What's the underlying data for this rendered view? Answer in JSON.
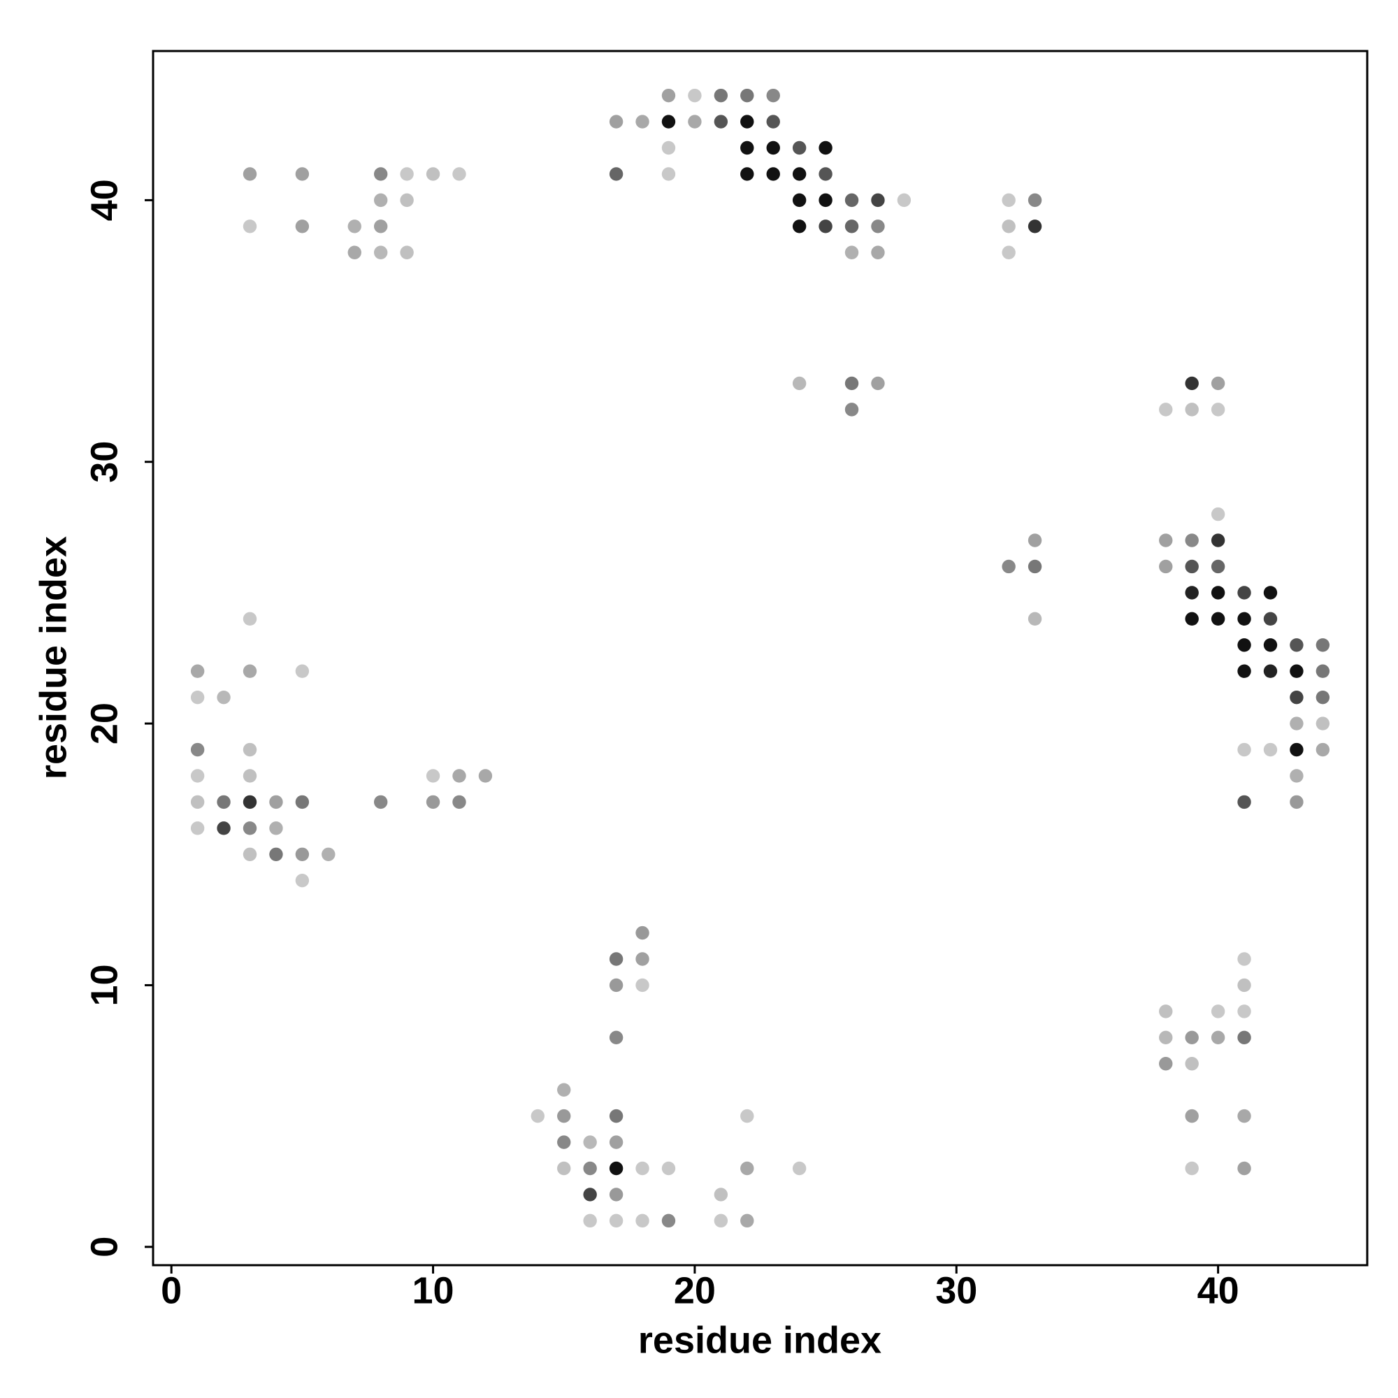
{
  "chart_data": {
    "type": "scatter",
    "xlabel": "residue index",
    "ylabel": "residue index",
    "xlim": [
      -0.7,
      45.7
    ],
    "ylim": [
      -0.7,
      45.7
    ],
    "xticks": [
      0,
      10,
      20,
      30,
      40
    ],
    "yticks": [
      0,
      10,
      20,
      30,
      40
    ],
    "x": [
      19,
      20,
      21,
      22,
      23,
      17,
      18,
      19,
      20,
      21,
      22,
      23,
      19,
      22,
      23,
      24,
      25,
      3,
      5,
      8,
      9,
      10,
      11,
      17,
      19,
      22,
      23,
      24,
      25,
      8,
      9,
      24,
      25,
      26,
      27,
      28,
      32,
      33,
      3,
      5,
      7,
      8,
      24,
      25,
      26,
      27,
      32,
      33,
      7,
      8,
      9,
      26,
      27,
      32,
      24,
      26,
      27,
      39,
      40,
      26,
      38,
      39,
      40,
      40,
      33,
      38,
      39,
      40,
      32,
      33,
      38,
      39,
      40,
      39,
      40,
      41,
      42,
      3,
      33,
      39,
      40,
      41,
      42,
      41,
      42,
      43,
      44,
      1,
      3,
      5,
      41,
      42,
      43,
      44,
      1,
      2,
      43,
      44,
      43,
      44,
      1,
      3,
      41,
      42,
      43,
      44,
      1,
      3,
      10,
      11,
      12,
      43,
      1,
      2,
      3,
      4,
      5,
      8,
      10,
      11,
      41,
      43,
      1,
      2,
      3,
      4,
      3,
      4,
      5,
      6,
      5,
      18,
      17,
      18,
      41,
      17,
      18,
      41,
      38,
      40,
      41,
      17,
      38,
      39,
      40,
      41,
      38,
      39,
      15,
      14,
      15,
      17,
      22,
      39,
      41,
      15,
      16,
      17,
      15,
      16,
      17,
      18,
      19,
      22,
      24,
      39,
      41,
      16,
      17,
      21,
      16,
      17,
      18,
      19,
      21,
      22
    ],
    "values": [
      44,
      44,
      44,
      44,
      44,
      43,
      43,
      43,
      43,
      43,
      43,
      43,
      42,
      42,
      42,
      42,
      42,
      41,
      41,
      41,
      41,
      41,
      41,
      41,
      41,
      41,
      41,
      41,
      41,
      40,
      40,
      40,
      40,
      40,
      40,
      40,
      40,
      40,
      39,
      39,
      39,
      39,
      39,
      39,
      39,
      39,
      39,
      39,
      38,
      38,
      38,
      38,
      38,
      38,
      33,
      33,
      33,
      33,
      33,
      32,
      32,
      32,
      32,
      28,
      27,
      27,
      27,
      27,
      26,
      26,
      26,
      26,
      26,
      25,
      25,
      25,
      25,
      24,
      24,
      24,
      24,
      24,
      24,
      23,
      23,
      23,
      23,
      22,
      22,
      22,
      22,
      22,
      22,
      22,
      21,
      21,
      21,
      21,
      20,
      20,
      19,
      19,
      19,
      19,
      19,
      19,
      18,
      18,
      18,
      18,
      18,
      18,
      17,
      17,
      17,
      17,
      17,
      17,
      17,
      17,
      17,
      17,
      16,
      16,
      16,
      16,
      15,
      15,
      15,
      15,
      14,
      12,
      11,
      11,
      11,
      10,
      10,
      10,
      9,
      9,
      9,
      8,
      8,
      8,
      8,
      8,
      7,
      7,
      6,
      5,
      5,
      5,
      5,
      5,
      5,
      4,
      4,
      4,
      3,
      3,
      3,
      3,
      3,
      3,
      3,
      3,
      3,
      2,
      2,
      2,
      1,
      1,
      1,
      1,
      1,
      1
    ],
    "colors": [
      "#a0a0a0",
      "#c8c8c8",
      "#777777",
      "#777777",
      "#888888",
      "#a0a0a0",
      "#a8a8a8",
      "#111111",
      "#a8a8a8",
      "#555555",
      "#111111",
      "#555555",
      "#c8c8c8",
      "#111111",
      "#111111",
      "#555555",
      "#111111",
      "#a0a0a0",
      "#a0a0a0",
      "#888888",
      "#c8c8c8",
      "#c0c0c0",
      "#c8c8c8",
      "#666666",
      "#c8c8c8",
      "#111111",
      "#111111",
      "#111111",
      "#555555",
      "#b0b0b0",
      "#c0c0c0",
      "#111111",
      "#111111",
      "#666666",
      "#444444",
      "#c8c8c8",
      "#c8c8c8",
      "#888888",
      "#c8c8c8",
      "#a0a0a0",
      "#b0b0b0",
      "#a0a0a0",
      "#111111",
      "#444444",
      "#666666",
      "#888888",
      "#c0c0c0",
      "#333333",
      "#a8a8a8",
      "#b8b8b8",
      "#c0c0c0",
      "#b0b0b0",
      "#a8a8a8",
      "#c8c8c8",
      "#b8b8b8",
      "#777777",
      "#a0a0a0",
      "#333333",
      "#a0a0a0",
      "#888888",
      "#c8c8c8",
      "#c0c0c0",
      "#c8c8c8",
      "#c8c8c8",
      "#a0a0a0",
      "#a0a0a0",
      "#888888",
      "#333333",
      "#888888",
      "#777777",
      "#a0a0a0",
      "#555555",
      "#666666",
      "#222222",
      "#111111",
      "#444444",
      "#111111",
      "#c8c8c8",
      "#b8b8b8",
      "#111111",
      "#111111",
      "#111111",
      "#444444",
      "#111111",
      "#111111",
      "#555555",
      "#777777",
      "#a8a8a8",
      "#a8a8a8",
      "#c8c8c8",
      "#111111",
      "#222222",
      "#111111",
      "#777777",
      "#c8c8c8",
      "#b8b8b8",
      "#444444",
      "#777777",
      "#b0b0b0",
      "#c0c0c0",
      "#888888",
      "#c0c0c0",
      "#c8c8c8",
      "#c8c8c8",
      "#111111",
      "#a8a8a8",
      "#c8c8c8",
      "#c0c0c0",
      "#c8c8c8",
      "#a8a8a8",
      "#a8a8a8",
      "#b0b0b0",
      "#c0c0c0",
      "#777777",
      "#333333",
      "#a0a0a0",
      "#777777",
      "#888888",
      "#999999",
      "#888888",
      "#555555",
      "#999999",
      "#c8c8c8",
      "#444444",
      "#888888",
      "#b0b0b0",
      "#c0c0c0",
      "#777777",
      "#999999",
      "#b0b0b0",
      "#c8c8c8",
      "#999999",
      "#777777",
      "#a0a0a0",
      "#c8c8c8",
      "#999999",
      "#c8c8c8",
      "#c0c0c0",
      "#c0c0c0",
      "#c8c8c8",
      "#c8c8c8",
      "#888888",
      "#b8b8b8",
      "#999999",
      "#a8a8a8",
      "#777777",
      "#999999",
      "#c0c0c0",
      "#b0b0b0",
      "#c8c8c8",
      "#999999",
      "#777777",
      "#c8c8c8",
      "#a0a0a0",
      "#a8a8a8",
      "#888888",
      "#b8b8b8",
      "#a0a0a0",
      "#c0c0c0",
      "#888888",
      "#111111",
      "#c8c8c8",
      "#c8c8c8",
      "#a8a8a8",
      "#c8c8c8",
      "#c8c8c8",
      "#a0a0a0",
      "#444444",
      "#999999",
      "#c0c0c0",
      "#c8c8c8",
      "#c8c8c8",
      "#c8c8c8",
      "#888888",
      "#c8c8c8",
      "#a8a8a8"
    ]
  }
}
